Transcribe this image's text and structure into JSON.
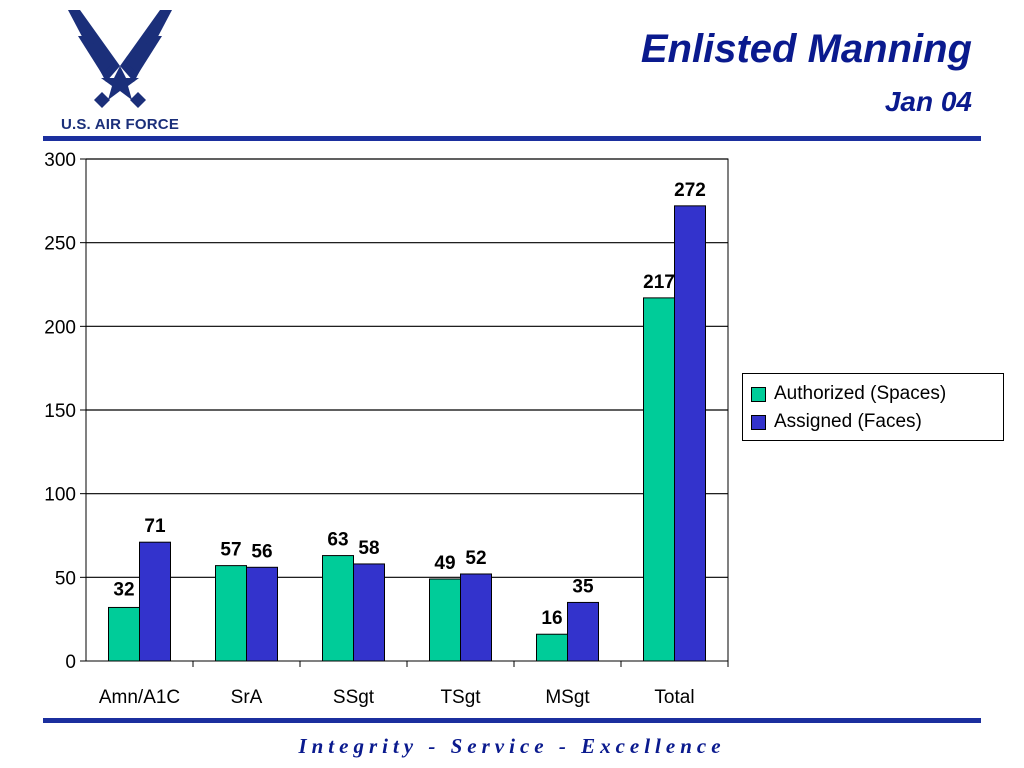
{
  "header": {
    "title": "Enlisted Manning",
    "subtitle": "Jan 04",
    "logo_text": "U.S. AIR FORCE"
  },
  "footer": {
    "motto": "Integrity - Service - Excellence"
  },
  "colors": {
    "authorized": "#00cc99",
    "assigned": "#3333cc",
    "brand": "#0a1a8e"
  },
  "chart_data": {
    "type": "bar",
    "categories": [
      "Amn/A1C",
      "SrA",
      "SSgt",
      "TSgt",
      "MSgt",
      "Total"
    ],
    "series": [
      {
        "name": "Authorized (Spaces)",
        "values": [
          32,
          57,
          63,
          49,
          16,
          217
        ]
      },
      {
        "name": "Assigned (Faces)",
        "values": [
          71,
          56,
          58,
          52,
          35,
          272
        ]
      }
    ],
    "y_ticks": [
      0,
      50,
      100,
      150,
      200,
      250,
      300
    ],
    "ylim": [
      0,
      300
    ],
    "grid": true,
    "legend_position": "right"
  }
}
